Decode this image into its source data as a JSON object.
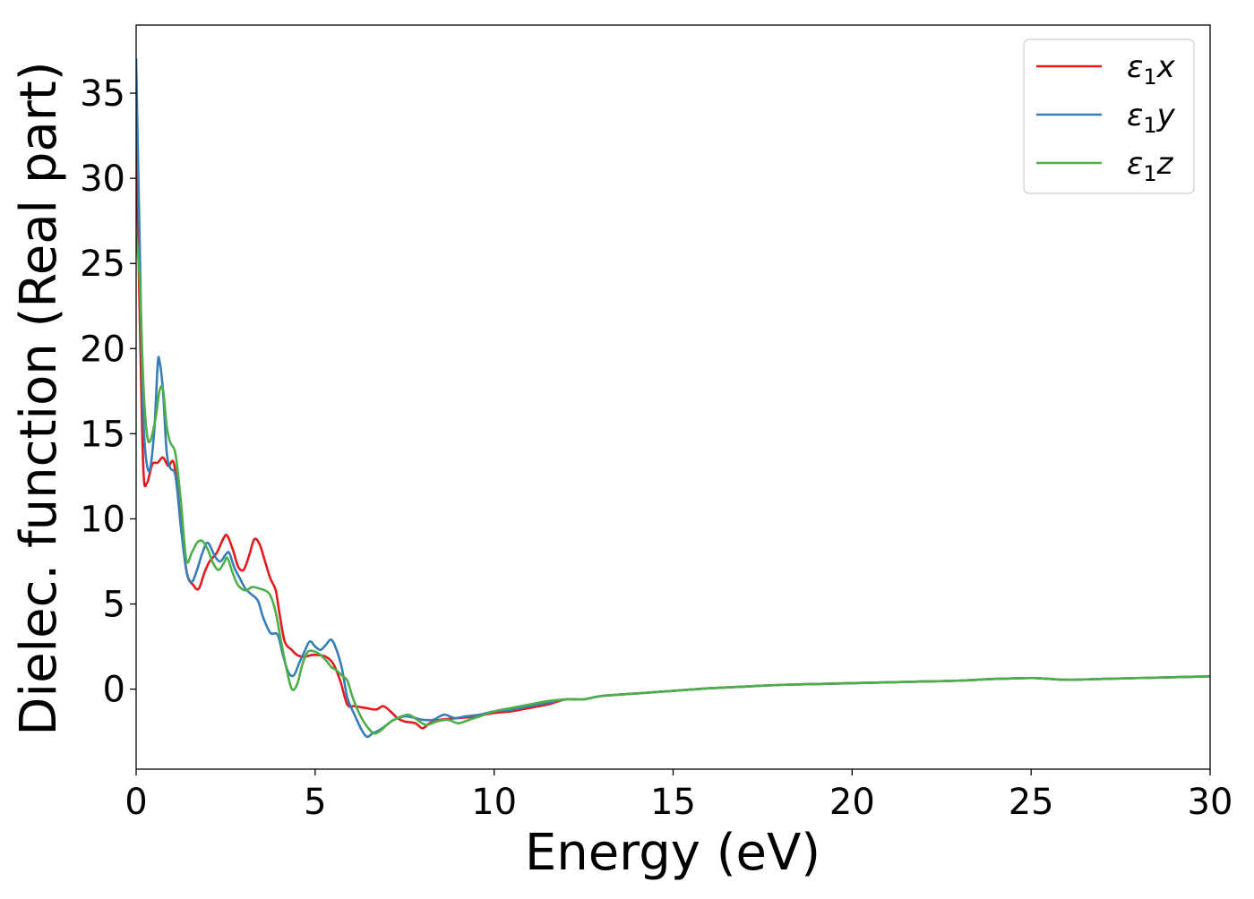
{
  "chart_data": {
    "type": "line",
    "xlabel": "Energy (eV)",
    "ylabel": "Dielec. function (Real part)",
    "xlim": [
      0,
      30
    ],
    "ylim": [
      -4.7,
      39
    ],
    "xticks": [
      0,
      5,
      10,
      15,
      20,
      25,
      30
    ],
    "xtick_labels": [
      "0",
      "5",
      "10",
      "15",
      "20",
      "25",
      "30"
    ],
    "yticks": [
      0,
      5,
      10,
      15,
      20,
      25,
      30,
      35
    ],
    "ytick_labels": [
      "0",
      "5",
      "10",
      "15",
      "20",
      "25",
      "30",
      "35"
    ],
    "grid": false,
    "legend_position": "top-right",
    "legend_subscript": "1",
    "series": [
      {
        "name": "ε1x",
        "legend_base": "ε",
        "legend_suffix": "x",
        "color": "#e41a1c",
        "points": [
          [
            0,
            32.5
          ],
          [
            0.1,
            22
          ],
          [
            0.2,
            13
          ],
          [
            0.3,
            12.1
          ],
          [
            0.45,
            13.2
          ],
          [
            0.6,
            13.3
          ],
          [
            0.75,
            13.6
          ],
          [
            0.9,
            13.1
          ],
          [
            1.05,
            13.3
          ],
          [
            1.2,
            11
          ],
          [
            1.4,
            7
          ],
          [
            1.6,
            6.1
          ],
          [
            1.75,
            5.9
          ],
          [
            1.9,
            6.8
          ],
          [
            2.05,
            7.5
          ],
          [
            2.25,
            8
          ],
          [
            2.45,
            8.9
          ],
          [
            2.55,
            9
          ],
          [
            2.7,
            8.2
          ],
          [
            2.85,
            7.2
          ],
          [
            3.0,
            7
          ],
          [
            3.15,
            7.8
          ],
          [
            3.3,
            8.8
          ],
          [
            3.45,
            8.5
          ],
          [
            3.6,
            7.5
          ],
          [
            3.75,
            6.5
          ],
          [
            3.9,
            5.8
          ],
          [
            4.0,
            4.5
          ],
          [
            4.15,
            2.8
          ],
          [
            4.35,
            2.3
          ],
          [
            4.5,
            2
          ],
          [
            4.7,
            1.9
          ],
          [
            4.9,
            2
          ],
          [
            5.1,
            2
          ],
          [
            5.3,
            1.9
          ],
          [
            5.5,
            1.5
          ],
          [
            5.7,
            0.5
          ],
          [
            5.9,
            -0.9
          ],
          [
            6.1,
            -1
          ],
          [
            6.4,
            -1.1
          ],
          [
            6.7,
            -1.2
          ],
          [
            6.9,
            -1
          ],
          [
            7.1,
            -1.3
          ],
          [
            7.3,
            -1.7
          ],
          [
            7.5,
            -1.9
          ],
          [
            7.8,
            -2
          ],
          [
            8.0,
            -2.3
          ],
          [
            8.2,
            -2
          ],
          [
            8.5,
            -1.8
          ],
          [
            9.0,
            -1.7
          ],
          [
            9.5,
            -1.6
          ],
          [
            10,
            -1.4
          ],
          [
            10.5,
            -1.3
          ],
          [
            11,
            -1.1
          ],
          [
            11.5,
            -0.9
          ],
          [
            12,
            -0.6
          ],
          [
            12.5,
            -0.6
          ],
          [
            13,
            -0.4
          ],
          [
            14,
            -0.25
          ],
          [
            15,
            -0.1
          ],
          [
            16,
            0.05
          ],
          [
            17,
            0.15
          ],
          [
            18,
            0.25
          ],
          [
            19,
            0.3
          ],
          [
            20,
            0.35
          ],
          [
            21,
            0.4
          ],
          [
            22,
            0.45
          ],
          [
            23,
            0.5
          ],
          [
            24,
            0.6
          ],
          [
            25,
            0.65
          ],
          [
            25.5,
            0.6
          ],
          [
            26,
            0.55
          ],
          [
            27,
            0.6
          ],
          [
            28,
            0.65
          ],
          [
            29,
            0.7
          ],
          [
            30,
            0.75
          ]
        ]
      },
      {
        "name": "ε1y",
        "legend_base": "ε",
        "legend_suffix": "y",
        "color": "#377eb8",
        "points": [
          [
            0,
            37
          ],
          [
            0.1,
            26
          ],
          [
            0.2,
            16
          ],
          [
            0.35,
            12.8
          ],
          [
            0.5,
            15
          ],
          [
            0.6,
            19
          ],
          [
            0.65,
            19.3
          ],
          [
            0.75,
            17.5
          ],
          [
            0.85,
            14
          ],
          [
            0.95,
            13
          ],
          [
            1.1,
            12.5
          ],
          [
            1.25,
            9.5
          ],
          [
            1.4,
            7
          ],
          [
            1.55,
            6.3
          ],
          [
            1.7,
            7
          ],
          [
            1.85,
            8
          ],
          [
            2.0,
            8.6
          ],
          [
            2.2,
            7.8
          ],
          [
            2.35,
            7.5
          ],
          [
            2.5,
            7.9
          ],
          [
            2.6,
            8
          ],
          [
            2.75,
            7.1
          ],
          [
            2.9,
            6.5
          ],
          [
            3.05,
            5.9
          ],
          [
            3.2,
            5.6
          ],
          [
            3.4,
            5.2
          ],
          [
            3.55,
            4.2
          ],
          [
            3.75,
            3.3
          ],
          [
            3.95,
            3.2
          ],
          [
            4.1,
            2
          ],
          [
            4.25,
            1
          ],
          [
            4.4,
            0.8
          ],
          [
            4.55,
            1.5
          ],
          [
            4.7,
            2.2
          ],
          [
            4.85,
            2.8
          ],
          [
            5.0,
            2.5
          ],
          [
            5.15,
            2.3
          ],
          [
            5.3,
            2.6
          ],
          [
            5.45,
            2.9
          ],
          [
            5.6,
            2.3
          ],
          [
            5.75,
            1.2
          ],
          [
            5.9,
            -0.5
          ],
          [
            6.1,
            -1.5
          ],
          [
            6.3,
            -2.4
          ],
          [
            6.45,
            -2.8
          ],
          [
            6.6,
            -2.6
          ],
          [
            6.8,
            -2.4
          ],
          [
            7.0,
            -2.1
          ],
          [
            7.2,
            -1.8
          ],
          [
            7.5,
            -1.6
          ],
          [
            7.8,
            -1.7
          ],
          [
            8.0,
            -1.8
          ],
          [
            8.3,
            -1.8
          ],
          [
            8.6,
            -1.5
          ],
          [
            8.9,
            -1.7
          ],
          [
            9.2,
            -1.6
          ],
          [
            9.6,
            -1.5
          ],
          [
            10,
            -1.3
          ],
          [
            10.5,
            -1.2
          ],
          [
            11,
            -1
          ],
          [
            11.5,
            -0.8
          ],
          [
            12,
            -0.6
          ],
          [
            12.5,
            -0.6
          ],
          [
            13,
            -0.4
          ],
          [
            14,
            -0.25
          ],
          [
            15,
            -0.1
          ],
          [
            16,
            0.05
          ],
          [
            17,
            0.15
          ],
          [
            18,
            0.25
          ],
          [
            19,
            0.3
          ],
          [
            20,
            0.35
          ],
          [
            21,
            0.4
          ],
          [
            22,
            0.45
          ],
          [
            23,
            0.5
          ],
          [
            24,
            0.6
          ],
          [
            25,
            0.65
          ],
          [
            25.5,
            0.6
          ],
          [
            26,
            0.55
          ],
          [
            27,
            0.6
          ],
          [
            28,
            0.65
          ],
          [
            29,
            0.7
          ],
          [
            30,
            0.75
          ]
        ]
      },
      {
        "name": "ε1z",
        "legend_base": "ε",
        "legend_suffix": "z",
        "color": "#4daf4a",
        "points": [
          [
            0,
            26.7
          ],
          [
            0.1,
            24
          ],
          [
            0.2,
            18
          ],
          [
            0.3,
            15
          ],
          [
            0.4,
            14.6
          ],
          [
            0.55,
            16
          ],
          [
            0.65,
            17.5
          ],
          [
            0.75,
            17.6
          ],
          [
            0.85,
            15.5
          ],
          [
            0.95,
            14.5
          ],
          [
            1.1,
            13.8
          ],
          [
            1.25,
            11
          ],
          [
            1.4,
            7.6
          ],
          [
            1.55,
            8
          ],
          [
            1.7,
            8.6
          ],
          [
            1.85,
            8.7
          ],
          [
            2.0,
            8.2
          ],
          [
            2.15,
            7.4
          ],
          [
            2.3,
            7
          ],
          [
            2.45,
            7.4
          ],
          [
            2.55,
            7.7
          ],
          [
            2.7,
            6.8
          ],
          [
            2.85,
            6.1
          ],
          [
            3.05,
            5.8
          ],
          [
            3.25,
            6
          ],
          [
            3.45,
            5.9
          ],
          [
            3.6,
            5.8
          ],
          [
            3.75,
            5.5
          ],
          [
            3.9,
            4.5
          ],
          [
            4.05,
            2.8
          ],
          [
            4.2,
            1.2
          ],
          [
            4.35,
            0
          ],
          [
            4.5,
            0.3
          ],
          [
            4.65,
            1.5
          ],
          [
            4.8,
            2.2
          ],
          [
            5.0,
            2.2
          ],
          [
            5.15,
            2
          ],
          [
            5.3,
            1.7
          ],
          [
            5.45,
            1.3
          ],
          [
            5.6,
            1.1
          ],
          [
            5.75,
            0.8
          ],
          [
            5.9,
            0.5
          ],
          [
            6.05,
            -0.5
          ],
          [
            6.25,
            -1.5
          ],
          [
            6.45,
            -2.2
          ],
          [
            6.65,
            -2.6
          ],
          [
            6.85,
            -2.4
          ],
          [
            7.05,
            -2
          ],
          [
            7.3,
            -1.7
          ],
          [
            7.6,
            -1.5
          ],
          [
            7.85,
            -1.8
          ],
          [
            8.1,
            -2.1
          ],
          [
            8.4,
            -1.9
          ],
          [
            8.7,
            -1.8
          ],
          [
            9.0,
            -2
          ],
          [
            9.3,
            -1.8
          ],
          [
            9.6,
            -1.6
          ],
          [
            10,
            -1.3
          ],
          [
            10.5,
            -1.1
          ],
          [
            11,
            -0.9
          ],
          [
            11.5,
            -0.7
          ],
          [
            12,
            -0.6
          ],
          [
            12.5,
            -0.6
          ],
          [
            13,
            -0.4
          ],
          [
            14,
            -0.25
          ],
          [
            15,
            -0.1
          ],
          [
            16,
            0.05
          ],
          [
            17,
            0.15
          ],
          [
            18,
            0.25
          ],
          [
            19,
            0.3
          ],
          [
            20,
            0.35
          ],
          [
            21,
            0.4
          ],
          [
            22,
            0.45
          ],
          [
            23,
            0.5
          ],
          [
            24,
            0.6
          ],
          [
            25,
            0.65
          ],
          [
            25.5,
            0.6
          ],
          [
            26,
            0.55
          ],
          [
            27,
            0.6
          ],
          [
            28,
            0.65
          ],
          [
            29,
            0.7
          ],
          [
            30,
            0.75
          ]
        ]
      }
    ]
  }
}
